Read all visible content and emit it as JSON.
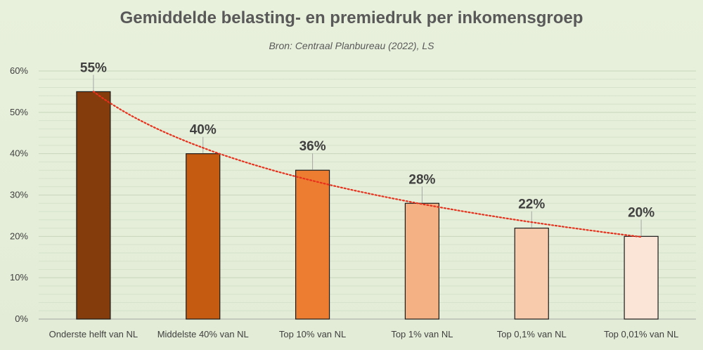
{
  "chart_data": {
    "type": "bar",
    "title": "Gemiddelde belasting- en premiedruk per inkomensgroep",
    "subtitle": "Bron: Centraal Planbureau (2022), LS",
    "categories": [
      "Onderste helft van NL",
      "Middelste 40% van NL",
      "Top 10% van NL",
      "Top 1% van NL",
      "Top 0,1% van NL",
      "Top 0,01% van NL"
    ],
    "values": [
      55,
      40,
      36,
      28,
      22,
      20
    ],
    "data_labels": [
      "55%",
      "40%",
      "36%",
      "28%",
      "22%",
      "20%"
    ],
    "bar_colors": [
      "#843c0c",
      "#c55a11",
      "#ed7d31",
      "#f4b183",
      "#f8cbad",
      "#fbe5d6"
    ],
    "ylim": [
      0,
      60
    ],
    "yticks": [
      0,
      10,
      20,
      30,
      40,
      50,
      60
    ],
    "ytick_labels": [
      "0%",
      "10%",
      "20%",
      "30%",
      "40%",
      "50%",
      "60%"
    ],
    "grid": true,
    "trendline": {
      "type": "logarithmic",
      "color": "#e8301c",
      "style": "dotted"
    },
    "xlabel": "",
    "ylabel": ""
  }
}
